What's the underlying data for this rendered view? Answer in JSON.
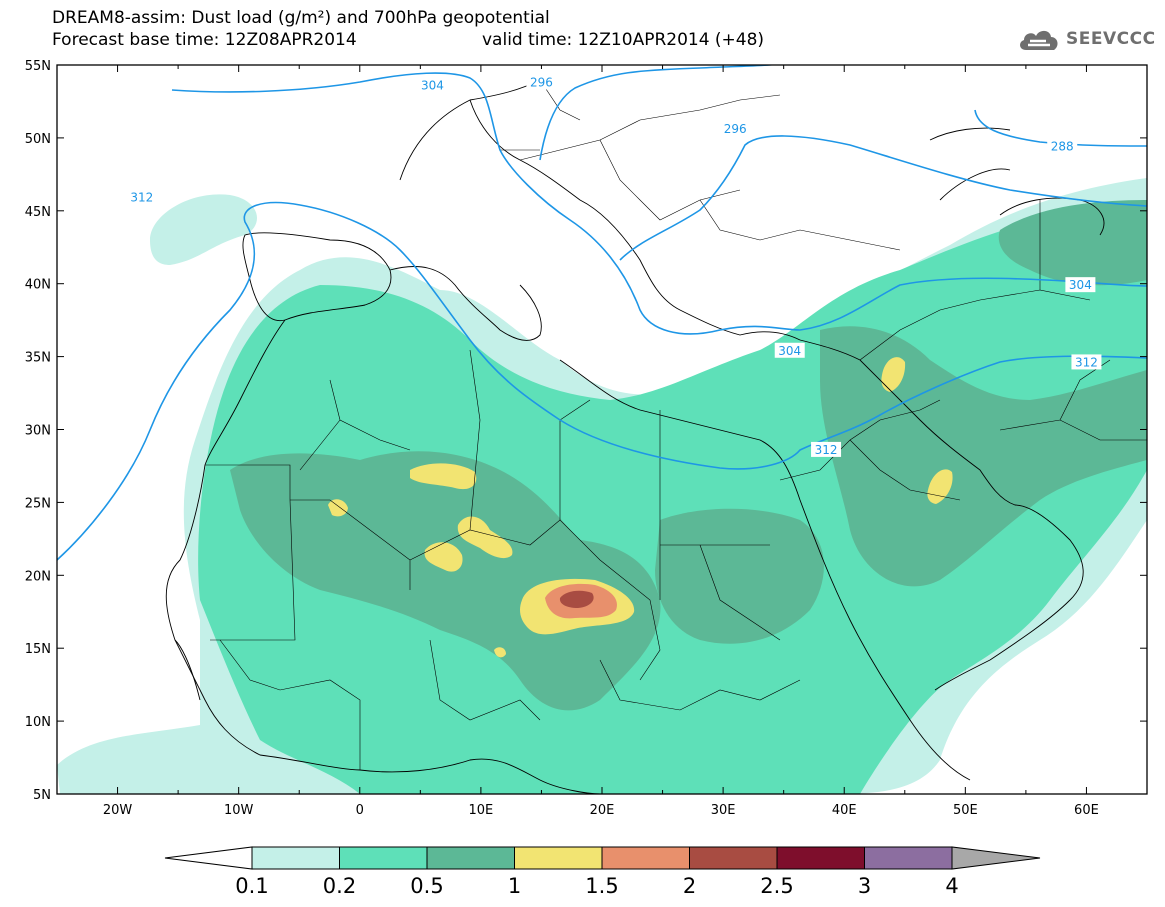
{
  "title": {
    "line1": "DREAM8-assim: Dust load (g/m²) and 700hPa geopotential",
    "line2_base": "Forecast base time: 12Z08APR2014",
    "line2_valid": "valid time: 12Z10APR2014 (+48)"
  },
  "logo": {
    "text": "SEEVCCC",
    "icon": "cloud-icon"
  },
  "axes": {
    "lon_range": [
      -25,
      65
    ],
    "lat_range": [
      5,
      55
    ],
    "lat_labels": [
      "55N",
      "50N",
      "45N",
      "40N",
      "35N",
      "30N",
      "25N",
      "20N",
      "15N",
      "10N",
      "5N"
    ],
    "lon_labels": [
      "20W",
      "10W",
      "0",
      "10E",
      "20E",
      "30E",
      "40E",
      "50E",
      "60E"
    ]
  },
  "contours": {
    "color": "#1e96e6",
    "labels": [
      {
        "text": "304",
        "lon": 6,
        "lat": 53.6
      },
      {
        "text": "296",
        "lon": 15,
        "lat": 53.8
      },
      {
        "text": "296",
        "lon": 31,
        "lat": 50.6
      },
      {
        "text": "288",
        "lon": 58,
        "lat": 49.4
      },
      {
        "text": "312",
        "lon": -18,
        "lat": 45.9
      },
      {
        "text": "304",
        "lon": 59.5,
        "lat": 39.9
      },
      {
        "text": "304",
        "lon": 35.5,
        "lat": 35.4
      },
      {
        "text": "312",
        "lon": 60,
        "lat": 34.6
      },
      {
        "text": "312",
        "lon": 38.5,
        "lat": 28.6
      }
    ]
  },
  "legend": {
    "labels": [
      "0.1",
      "0.2",
      "0.5",
      "1",
      "1.5",
      "2",
      "2.5",
      "3",
      "4"
    ],
    "colors": [
      "#c4f0e8",
      "#5ee0b8",
      "#5cb896",
      "#f2e472",
      "#e8906c",
      "#a84c42",
      "#7e0e2c",
      "#8c6ea0"
    ],
    "below_color": "#ffffff",
    "above_color": "#a8a8a8"
  }
}
